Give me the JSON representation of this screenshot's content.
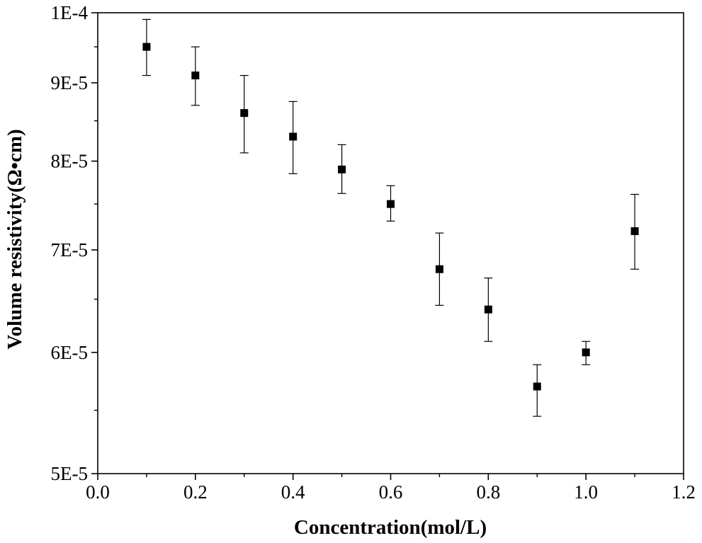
{
  "chart_data": {
    "type": "scatter",
    "title": "",
    "xlabel": "Concentration(mol/L)",
    "ylabel": "Volume resistivity(Ω•cm)",
    "xlim": [
      0.0,
      1.2
    ],
    "ylim": [
      5e-05,
      0.0001
    ],
    "y_scale": "log",
    "grid": false,
    "legend": "none",
    "x_ticks": [
      {
        "value": 0.0,
        "label": "0.0"
      },
      {
        "value": 0.2,
        "label": "0.2"
      },
      {
        "value": 0.4,
        "label": "0.4"
      },
      {
        "value": 0.6,
        "label": "0.6"
      },
      {
        "value": 0.8,
        "label": "0.8"
      },
      {
        "value": 1.0,
        "label": "1.0"
      },
      {
        "value": 1.2,
        "label": "1.2"
      }
    ],
    "y_ticks": [
      {
        "value": 5e-05,
        "label": "5E-5"
      },
      {
        "value": 6e-05,
        "label": "6E-5"
      },
      {
        "value": 7e-05,
        "label": "7E-5"
      },
      {
        "value": 8e-05,
        "label": "8E-5"
      },
      {
        "value": 9e-05,
        "label": "9E-5"
      },
      {
        "value": 0.0001,
        "label": "1E-4"
      }
    ],
    "y_minor_ticks": [
      5.5e-05,
      6.5e-05,
      7.5e-05,
      8.5e-05,
      9.5e-05
    ],
    "marker": "square",
    "color": "#000000",
    "series": [
      {
        "name": "",
        "x": [
          0.1,
          0.2,
          0.3,
          0.4,
          0.5,
          0.6,
          0.7,
          0.8,
          0.9,
          1.0,
          1.1
        ],
        "y": [
          9.5e-05,
          9.1e-05,
          8.6e-05,
          8.3e-05,
          7.9e-05,
          7.5e-05,
          6.8e-05,
          6.4e-05,
          5.7e-05,
          6e-05,
          7.2e-05
        ],
        "y_err_low": [
          9.1e-05,
          8.7e-05,
          8.1e-05,
          7.85e-05,
          7.62e-05,
          7.31e-05,
          6.44e-05,
          6.1e-05,
          5.45e-05,
          5.89e-05,
          6.8e-05
        ],
        "y_err_high": [
          9.9e-05,
          9.5e-05,
          9.1e-05,
          8.75e-05,
          8.2e-05,
          7.71e-05,
          7.18e-05,
          6.71e-05,
          5.89e-05,
          6.1e-05,
          7.61e-05
        ]
      }
    ]
  }
}
